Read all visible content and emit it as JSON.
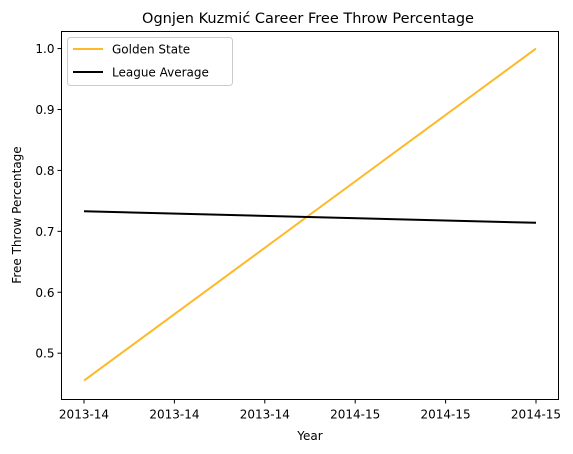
{
  "chart_data": {
    "type": "line",
    "title": "Ognjen Kuzmić Career Free Throw Percentage",
    "xlabel": "Year",
    "ylabel": "Free Throw Percentage",
    "x": [
      0,
      1
    ],
    "x_tick_values": [
      0,
      0.2,
      0.4,
      0.6,
      0.8,
      1.0
    ],
    "x_tick_labels": [
      "2013-14",
      "2013-14",
      "2013-14",
      "2014-15",
      "2014-15",
      "2014-15"
    ],
    "ylim": [
      0.424,
      1.028
    ],
    "y_ticks": [
      0.5,
      0.6,
      0.7,
      0.8,
      0.9,
      1.0
    ],
    "y_tick_labels": [
      "0.5",
      "0.6",
      "0.7",
      "0.8",
      "0.9",
      "1.0"
    ],
    "grid": false,
    "legend_position": "top-left",
    "series": [
      {
        "name": "Golden State",
        "color": "#FDB927",
        "values": [
          0.455,
          1.0
        ]
      },
      {
        "name": "League Average",
        "color": "#000000",
        "values": [
          0.733,
          0.714
        ]
      }
    ]
  }
}
